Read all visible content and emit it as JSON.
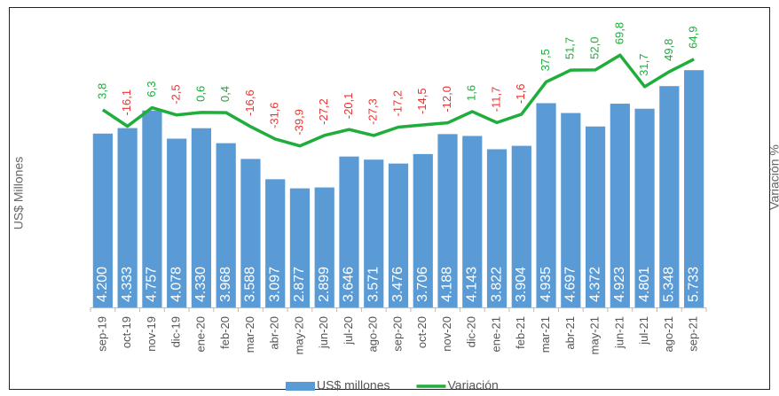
{
  "chart_data": {
    "type": "bar",
    "y_label": "US$ Millones",
    "y2_label": "Variación %",
    "categories": [
      "sep-19",
      "oct-19",
      "nov-19",
      "dic-19",
      "ene-20",
      "feb-20",
      "mar-20",
      "abr-20",
      "may-20",
      "jun-20",
      "jul-20",
      "ago-20",
      "sep-20",
      "oct-20",
      "nov-20",
      "dic-20",
      "ene-21",
      "feb-21",
      "mar-21",
      "abr-21",
      "may-21",
      "jun-21",
      "jul-21",
      "ago-21",
      "sep-21"
    ],
    "ylim": [
      0,
      7000
    ],
    "y2lim": [
      -235,
      115
    ],
    "legend": "bottom",
    "series": [
      {
        "name": "US$ millones",
        "type": "bar",
        "color": "#5b9bd5",
        "values": [
          4200,
          4333,
          4757,
          4078,
          4330,
          3968,
          3588,
          3097,
          2877,
          2899,
          3646,
          3571,
          3476,
          3706,
          4188,
          4143,
          3822,
          3904,
          4935,
          4697,
          4372,
          4923,
          4801,
          5348,
          5733
        ],
        "value_labels": [
          "4.200",
          "4.333",
          "4.757",
          "4.078",
          "4.330",
          "3.968",
          "3.588",
          "3.097",
          "2.877",
          "2.899",
          "3.646",
          "3.571",
          "3.476",
          "3.706",
          "4.188",
          "4.143",
          "3.822",
          "3.904",
          "4.935",
          "4.697",
          "4.372",
          "4.923",
          "4.801",
          "5.348",
          "5.733"
        ]
      },
      {
        "name": "Variación",
        "type": "line",
        "axis": "y2",
        "color": "#1fad3c",
        "negative_label_color": "#e8342f",
        "values": [
          3.8,
          -16.1,
          6.3,
          -2.5,
          0.6,
          0.4,
          -16.6,
          -31.6,
          -39.9,
          -27.2,
          -20.1,
          -27.3,
          -17.2,
          -14.5,
          -12.0,
          1.6,
          -11.7,
          -1.6,
          37.5,
          51.7,
          52.0,
          69.8,
          31.7,
          49.8,
          64.9
        ],
        "value_labels": [
          "3,8",
          "-16,1",
          "6,3",
          "-2,5",
          "0,6",
          "0,4",
          "-16,6",
          "-31,6",
          "-39,9",
          "-27,2",
          "-20,1",
          "-27,3",
          "-17,2",
          "-14,5",
          "-12,0",
          "1,6",
          "-11,7",
          "-1,6",
          "37,5",
          "51,7",
          "52,0",
          "69,8",
          "31,7",
          "49,8",
          "64,9"
        ]
      }
    ]
  }
}
